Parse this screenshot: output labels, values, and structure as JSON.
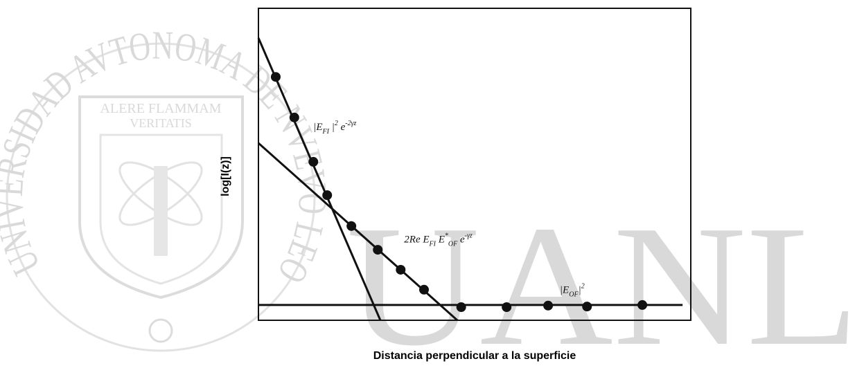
{
  "watermark": {
    "ring": "UNIVERSIDAD AVTONOMA DE NVEVO LEON",
    "motto1": "ALERE FLAMMAM",
    "motto2": "VERITATIS",
    "letters": "UANL"
  },
  "chart_data": {
    "type": "line",
    "xlabel": "Distancia perpendicular a la superficie",
    "ylabel": "log[I(z)]",
    "xlim": [
      0,
      100
    ],
    "ylim": [
      0,
      100
    ],
    "color": "#111111",
    "series": [
      {
        "mode": "line",
        "x": [
          0,
          28.2
        ],
        "values": [
          90.5,
          0
        ]
      },
      {
        "mode": "line",
        "x": [
          0,
          46.0
        ],
        "values": [
          56.8,
          0
        ]
      },
      {
        "mode": "line",
        "x": [
          0,
          98.1
        ],
        "values": [
          4.9,
          4.9
        ]
      },
      {
        "mode": "points",
        "x": [
          4.0,
          8.3,
          12.7,
          15.9,
          21.5,
          27.6,
          32.9,
          38.3,
          46.9,
          57.4,
          67.0,
          76.0,
          88.8
        ],
        "values": [
          78.0,
          65.0,
          50.8,
          40.1,
          30.2,
          22.6,
          16.2,
          9.8,
          4.2,
          4.2,
          4.7,
          4.4,
          4.9
        ]
      }
    ],
    "annotations": [
      {
        "x": 12.7,
        "y": 61,
        "parts": [
          {
            "t": "|E"
          },
          {
            "t": "FI",
            "s": "sub"
          },
          {
            "t": " |"
          },
          {
            "t": "2",
            "s": "sup"
          },
          {
            "t": " e"
          },
          {
            "t": "-2γz",
            "s": "sup"
          }
        ]
      },
      {
        "x": 33.7,
        "y": 25,
        "parts": [
          {
            "t": "2Re E"
          },
          {
            "t": "FI",
            "s": "sub"
          },
          {
            "t": " E"
          },
          {
            "t": "*",
            "s": "sup"
          },
          {
            "t": "OF",
            "s": "sub"
          },
          {
            "t": " e"
          },
          {
            "t": "-γz",
            "s": "sup"
          }
        ]
      },
      {
        "x": 69.7,
        "y": 8.8,
        "parts": [
          {
            "t": "|E"
          },
          {
            "t": "OF",
            "s": "sub"
          },
          {
            "t": "|"
          },
          {
            "t": "2",
            "s": "sup"
          }
        ]
      }
    ]
  }
}
